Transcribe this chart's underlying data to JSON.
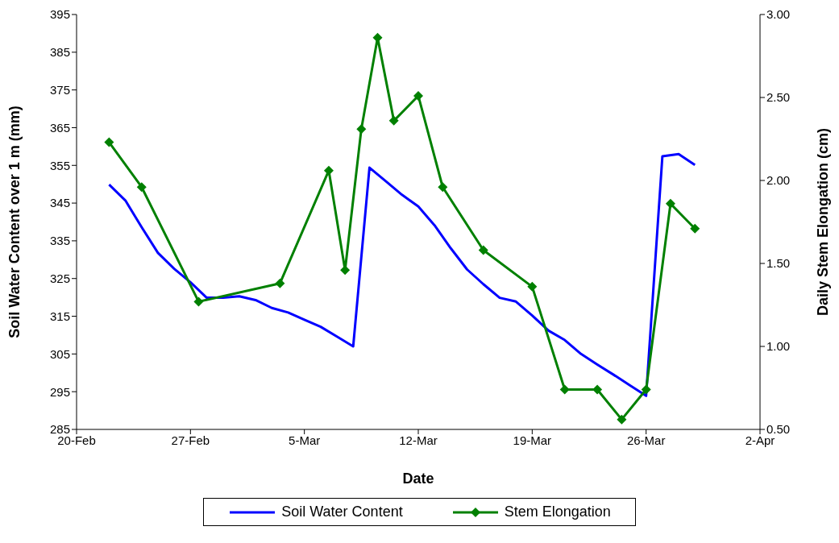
{
  "chart_data": {
    "type": "line",
    "xlabel": "Date",
    "ylabel": "Soil Water Content over 1 m (mm)",
    "y2label": "Daily Stem Elongation (cm)",
    "xlim": [
      "--02-20",
      "--04-02"
    ],
    "xticks": [
      {
        "value": "--02-20",
        "label": "20-Feb"
      },
      {
        "value": "--02-27",
        "label": "27-Feb"
      },
      {
        "value": "--03-05",
        "label": "5-Mar"
      },
      {
        "value": "--03-12",
        "label": "12-Mar"
      },
      {
        "value": "--03-19",
        "label": "19-Mar"
      },
      {
        "value": "--03-26",
        "label": "26-Mar"
      },
      {
        "value": "--04-02",
        "label": "2-Apr"
      }
    ],
    "ylim": [
      285,
      395
    ],
    "yticks": [
      285,
      295,
      305,
      315,
      325,
      335,
      345,
      355,
      365,
      375,
      385,
      395
    ],
    "y2lim": [
      0.5,
      3.0
    ],
    "y2ticks": [
      {
        "value": 0.5,
        "label": "0.50"
      },
      {
        "value": 1.0,
        "label": "1.00"
      },
      {
        "value": 1.5,
        "label": "1.50"
      },
      {
        "value": 2.0,
        "label": "2.00"
      },
      {
        "value": 2.5,
        "label": "2.50"
      },
      {
        "value": 3.0,
        "label": "3.00"
      }
    ],
    "grid": false,
    "legend": "bottom",
    "series": [
      {
        "name": "Soil Water Content",
        "color": "#0000ff",
        "marker": "none",
        "x": [
          "--02-22",
          "--02-23",
          "--02-24",
          "--02-25",
          "--02-26",
          "--02-27",
          "--02-28",
          "--02-29",
          "--03-01",
          "--03-02",
          "--03-03",
          "--03-04",
          "--03-05",
          "--03-06",
          "--03-07",
          "--03-08",
          "--03-09",
          "--03-10",
          "--03-11",
          "--03-12",
          "--03-13",
          "--03-14",
          "--03-15",
          "--03-16",
          "--03-17",
          "--03-18",
          "--03-19",
          "--03-20",
          "--03-21",
          "--03-22",
          "--03-23",
          "--03-24",
          "--03-25",
          "--03-26",
          "--03-27",
          "--03-28",
          "--03-29"
        ],
        "values": [
          349.9,
          345.7,
          338.6,
          331.8,
          327.6,
          324,
          319.9,
          319.9,
          320.3,
          319.3,
          317.2,
          316,
          314.1,
          312.2,
          309.6,
          307,
          354.4,
          350.8,
          347.2,
          344.1,
          339.1,
          333,
          327.4,
          323.5,
          319.9,
          318.9,
          315.2,
          311.2,
          308.7,
          305,
          302.2,
          299.5,
          296.7,
          293.9,
          357.4,
          358,
          355.1
        ]
      },
      {
        "name": "Stem Elongation",
        "color": "#008000",
        "marker": "diamond",
        "axis": "y2",
        "x": [
          "--02-22",
          "--02-24",
          "--02-27T12:00",
          "--03-03T12:00",
          "--03-06T12:00",
          "--03-07T12:00",
          "--03-08T12:00",
          "--03-09T12:00",
          "--03-10T12:00",
          "--03-12",
          "--03-13T12:00",
          "--03-16",
          "--03-19",
          "--03-21",
          "--03-23",
          "--03-24T12:00",
          "--03-26",
          "--03-27T12:00",
          "--03-29"
        ],
        "values": [
          2.23,
          1.96,
          1.27,
          1.38,
          2.06,
          1.46,
          2.31,
          2.86,
          2.36,
          2.51,
          1.96,
          1.58,
          1.36,
          0.74,
          0.74,
          0.56,
          0.74,
          1.86,
          1.71
        ]
      }
    ]
  }
}
